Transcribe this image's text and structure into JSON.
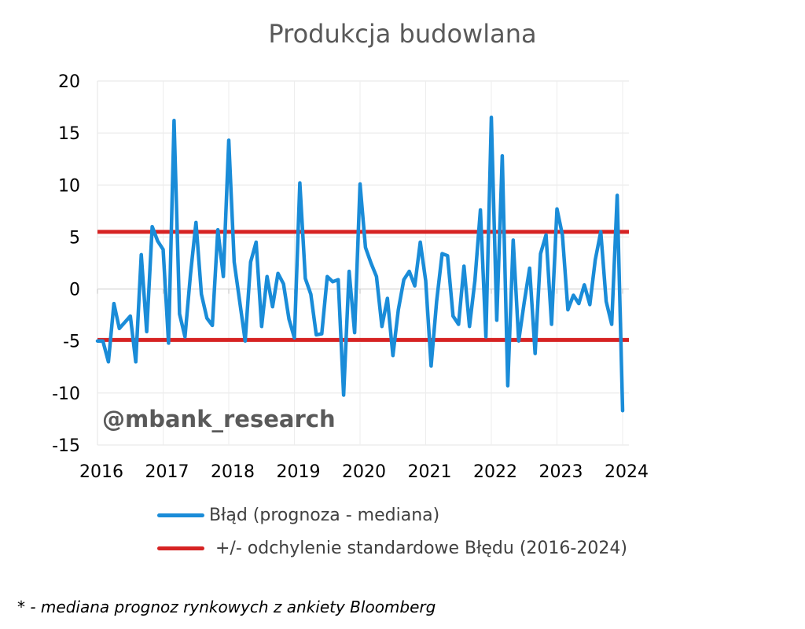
{
  "chart_data": {
    "type": "line",
    "title": "Produkcja budowlana",
    "watermark": "@mbank_research",
    "footnote": "* - mediana prognoz rynkowych z ankiety Bloomberg",
    "ylim": [
      -15,
      20
    ],
    "yticks": [
      -15,
      -10,
      -5,
      0,
      5,
      10,
      15,
      20
    ],
    "x_tick_labels": [
      "2016",
      "2017",
      "2018",
      "2019",
      "2020",
      "2021",
      "2022",
      "2023",
      "2024"
    ],
    "x_start": 2016.0,
    "grid": true,
    "legend_position": "bottom",
    "series": [
      {
        "name": "Błąd (prognoza - mediana)",
        "color": "#1a8cd8",
        "x": [
          2016.0,
          2016.083,
          2016.167,
          2016.25,
          2016.333,
          2016.417,
          2016.5,
          2016.583,
          2016.667,
          2016.75,
          2016.833,
          2016.917,
          2017.0,
          2017.083,
          2017.167,
          2017.25,
          2017.333,
          2017.417,
          2017.5,
          2017.583,
          2017.667,
          2017.75,
          2017.833,
          2017.917,
          2018.0,
          2018.083,
          2018.167,
          2018.25,
          2018.333,
          2018.417,
          2018.5,
          2018.583,
          2018.667,
          2018.75,
          2018.833,
          2018.917,
          2019.0,
          2019.083,
          2019.167,
          2019.25,
          2019.333,
          2019.417,
          2019.5,
          2019.583,
          2019.667,
          2019.75,
          2019.833,
          2019.917,
          2020.0,
          2020.083,
          2020.167,
          2020.25,
          2020.333,
          2020.417,
          2020.5,
          2020.583,
          2020.667,
          2020.75,
          2020.833,
          2020.917,
          2021.0,
          2021.083,
          2021.167,
          2021.25,
          2021.333,
          2021.417,
          2021.5,
          2021.583,
          2021.667,
          2021.75,
          2021.833,
          2021.917,
          2022.0,
          2022.083,
          2022.167,
          2022.25,
          2022.333,
          2022.417,
          2022.5,
          2022.583,
          2022.667,
          2022.75,
          2022.833,
          2022.917,
          2023.0,
          2023.083,
          2023.167,
          2023.25,
          2023.333,
          2023.417,
          2023.5,
          2023.583,
          2023.667,
          2023.75,
          2023.833,
          2023.917,
          2024.0
        ],
        "values": [
          -5,
          -5,
          -7,
          -1.4,
          -3.8,
          -3.2,
          -2.6,
          -7,
          3.3,
          -4.1,
          6,
          4.6,
          3.8,
          -5.2,
          16.2,
          -2.4,
          -4.6,
          1.4,
          6.4,
          -0.5,
          -2.8,
          -3.5,
          5.7,
          1.2,
          14.3,
          2.6,
          -1.2,
          -5,
          2.6,
          4.5,
          -3.6,
          1.2,
          -1.7,
          1.5,
          0.5,
          -2.9,
          -4.7,
          10.2,
          1,
          -0.5,
          -4.4,
          -4.3,
          1.2,
          0.7,
          0.9,
          -10.2,
          1.7,
          -4.2,
          10.1,
          4,
          2.5,
          1.2,
          -3.6,
          -0.9,
          -6.4,
          -2,
          0.9,
          1.7,
          0.3,
          4.5,
          0.8,
          -7.4,
          -1.2,
          3.4,
          3.2,
          -2.6,
          -3.4,
          2.2,
          -3.6,
          0.8,
          7.6,
          -4.6,
          16.5,
          -3,
          12.8,
          -9.3,
          4.7,
          -5,
          -1.3,
          2,
          -6.2,
          3.4,
          5.2,
          -3.4,
          7.7,
          5.2,
          -2,
          -0.6,
          -1.4,
          0.4,
          -1.5,
          2.8,
          5.5,
          -1.2,
          -3.4,
          9,
          -11.7
        ]
      }
    ],
    "bands": [
      {
        "name": "+/- odchylenie standardowe Błędu (2016-2024)",
        "color": "#d62323",
        "upper": 5.5,
        "lower": -4.9
      }
    ]
  }
}
